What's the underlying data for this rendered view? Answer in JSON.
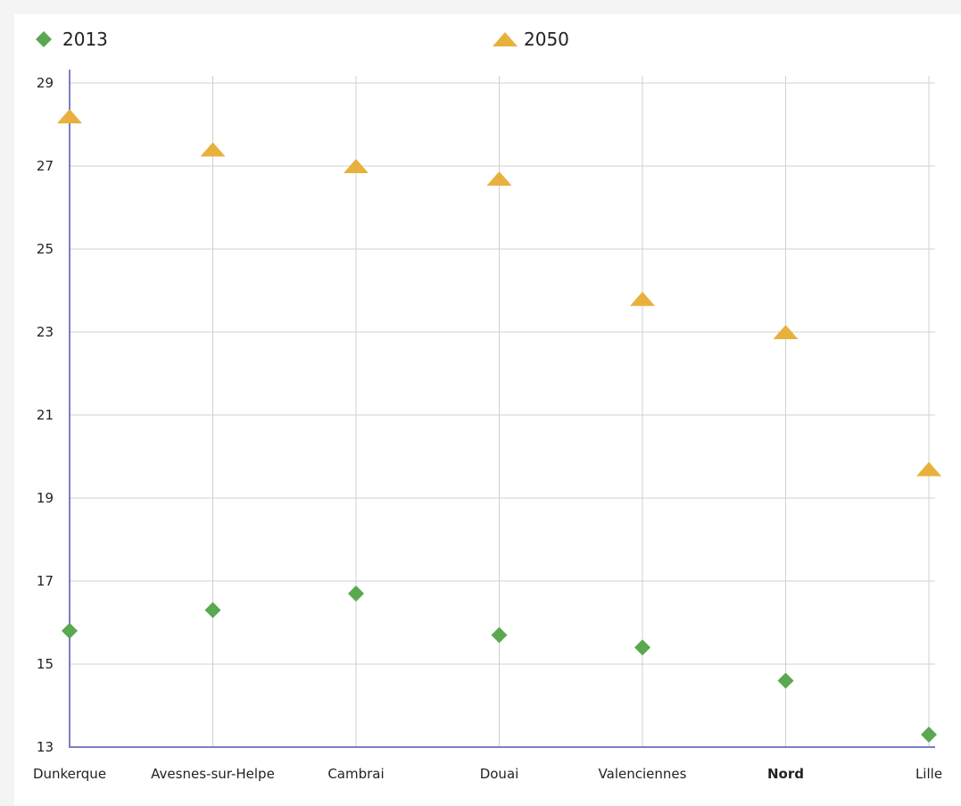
{
  "chart_data": {
    "type": "scatter",
    "categories": [
      "Dunkerque",
      "Avesnes-sur-Helpe",
      "Cambrai",
      "Douai",
      "Valenciennes",
      "Nord",
      "Lille"
    ],
    "highlighted_category": "Nord",
    "series": [
      {
        "name": "2013",
        "marker": "diamond",
        "color": "#5aa84f",
        "values": [
          15.8,
          16.3,
          16.7,
          15.7,
          15.4,
          14.6,
          13.3
        ]
      },
      {
        "name": "2050",
        "marker": "triangle",
        "color": "#e8b03c",
        "values": [
          28.2,
          27.4,
          27.0,
          26.7,
          23.8,
          23.0,
          19.7
        ]
      }
    ],
    "ylim": [
      13,
      29
    ],
    "yticks": [
      "13",
      "15",
      "17",
      "19",
      "21",
      "23",
      "25",
      "27",
      "29"
    ],
    "grid": true,
    "legend_position": "top"
  }
}
